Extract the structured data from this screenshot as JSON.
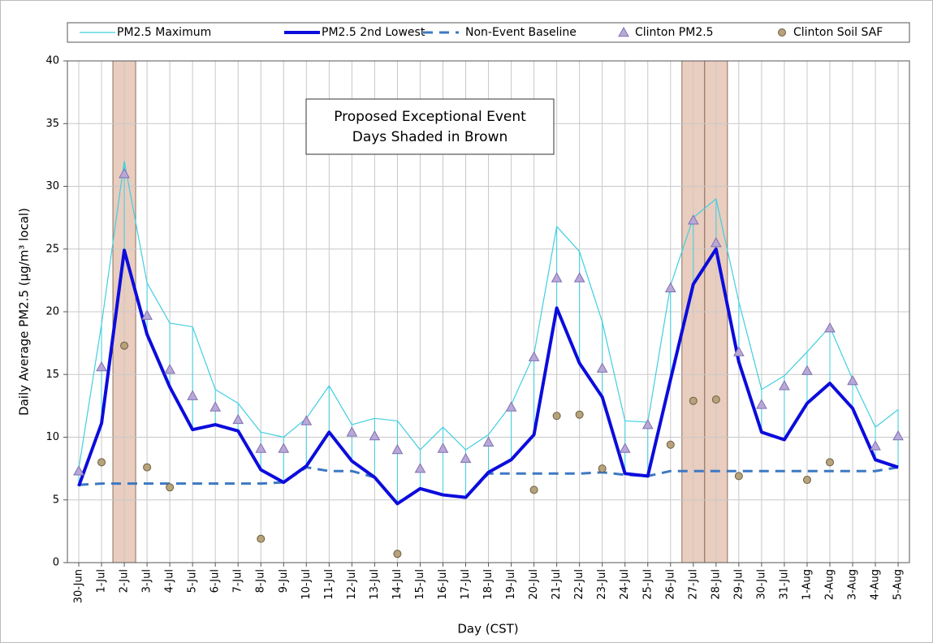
{
  "chart_data": {
    "type": "line",
    "x_label": "Day (CST)",
    "y_label": "Daily Average PM2.5 (µg/m³ local)",
    "annotation": [
      "Proposed Exceptional Event",
      "Days Shaded in Brown"
    ],
    "shaded_categories": [
      "2-Jul",
      "27-Jul",
      "28-Jul"
    ],
    "shade_color": "#e9cdbf",
    "categories": [
      "30-Jun",
      "1-Jul",
      "2-Jul",
      "3-Jul",
      "4-Jul",
      "5-Jul",
      "6-Jul",
      "7-Jul",
      "8-Jul",
      "9-Jul",
      "10-Jul",
      "11-Jul",
      "12-Jul",
      "13-Jul",
      "14-Jul",
      "15-Jul",
      "16-Jul",
      "17-Jul",
      "18-Jul",
      "19-Jul",
      "20-Jul",
      "21-Jul",
      "22-Jul",
      "23-Jul",
      "24-Jul",
      "25-Jul",
      "26-Jul",
      "27-Jul",
      "28-Jul",
      "29-Jul",
      "30-Jul",
      "31-Jul",
      "1-Aug",
      "2-Aug",
      "3-Aug",
      "4-Aug",
      "5-Aug"
    ],
    "ylim": [
      0,
      40
    ],
    "yticks": [
      0,
      5,
      10,
      15,
      20,
      25,
      30,
      35,
      40
    ],
    "grid": true,
    "legend": "top",
    "series": [
      {
        "name": "PM2.5 Maximum",
        "color": "#3fcfe0",
        "style": "thin-line",
        "values": [
          7.5,
          19,
          32,
          22.3,
          19.1,
          18.8,
          13.8,
          12.7,
          10.4,
          10,
          11.5,
          14.1,
          11,
          11.5,
          11.3,
          9,
          10.8,
          9,
          10.2,
          12.6,
          16.6,
          26.8,
          24.8,
          19.2,
          11.3,
          11.2,
          22.1,
          27.5,
          29,
          20.8,
          13.8,
          14.9,
          16.8,
          18.8,
          14.6,
          10.8,
          12.2
        ]
      },
      {
        "name": "PM2.5 2nd Lowest",
        "color": "#0c0cdc",
        "style": "thick-line",
        "values": [
          6.1,
          11.1,
          24.9,
          18.2,
          14,
          10.6,
          11,
          10.5,
          7.4,
          6.4,
          7.7,
          10.4,
          8.1,
          6.8,
          4.7,
          5.9,
          5.4,
          5.2,
          7.2,
          8.2,
          10.2,
          20.3,
          15.9,
          13.2,
          7.1,
          6.9,
          14.6,
          22.2,
          25,
          16,
          10.4,
          9.8,
          12.7,
          14.3,
          12.3,
          8.2,
          7.6
        ]
      },
      {
        "name": "Non-Event Baseline",
        "color": "#3c78c2",
        "style": "dashed-line",
        "values": [
          6.2,
          6.3,
          6.3,
          6.3,
          6.3,
          6.3,
          6.3,
          6.3,
          6.3,
          6.4,
          7.6,
          7.3,
          7.3,
          6.8,
          4.7,
          5.9,
          5.4,
          5.2,
          7.1,
          7.1,
          7.1,
          7.1,
          7.1,
          7.2,
          7.0,
          6.9,
          7.3,
          7.3,
          7.3,
          7.3,
          7.3,
          7.3,
          7.3,
          7.3,
          7.3,
          7.3,
          7.6
        ]
      },
      {
        "name": "Clinton PM2.5",
        "color": "#b8a8d8",
        "style": "triangle",
        "values": [
          7.3,
          15.6,
          31,
          19.7,
          15.4,
          13.3,
          12.4,
          11.4,
          9.1,
          9.1,
          11.3,
          null,
          10.4,
          10.1,
          9.0,
          7.5,
          9.1,
          8.3,
          9.6,
          12.4,
          16.4,
          22.7,
          22.7,
          15.5,
          9.1,
          11.0,
          21.9,
          27.3,
          25.5,
          16.8,
          12.6,
          14.1,
          15.3,
          18.7,
          14.5,
          9.3,
          10.1
        ]
      },
      {
        "name": "Clinton Soil SAF",
        "color": "#b6a27b",
        "style": "circle",
        "values": [
          null,
          8.0,
          17.3,
          7.6,
          6.0,
          null,
          null,
          null,
          1.9,
          null,
          null,
          null,
          null,
          null,
          0.7,
          null,
          null,
          null,
          null,
          null,
          5.8,
          11.7,
          11.8,
          7.5,
          null,
          null,
          9.4,
          12.9,
          13.0,
          6.9,
          null,
          null,
          6.6,
          8.0,
          null,
          null,
          null
        ]
      }
    ]
  }
}
